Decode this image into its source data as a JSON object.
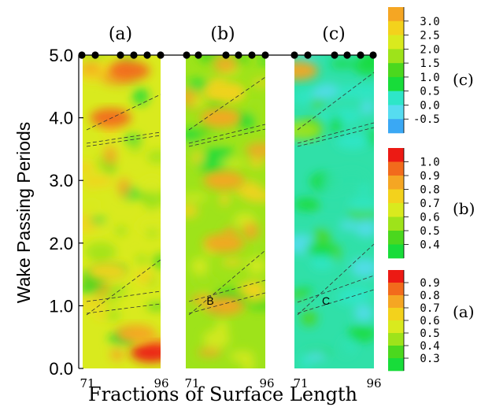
{
  "chart_data": {
    "type": "heatmap",
    "xlabel": "Fractions of Surface Length",
    "ylabel": "Wake Passing Periods",
    "ylim": [
      0,
      5
    ],
    "y_ticks": [
      "0.0",
      "1.0",
      "2.0",
      "3.0",
      "4.0",
      "5.0"
    ],
    "grid": false,
    "panels": [
      {
        "label": "(a)",
        "x_ticks": [
          "71",
          "96"
        ],
        "annotation": "",
        "colorbar": "(a)",
        "sensor_marker_count": 6,
        "value_range": [
          0.3,
          0.9
        ],
        "hotspots": [
          {
            "x": 93,
            "y": 0.25,
            "level": 0.9
          },
          {
            "x": 80,
            "y": 4.0,
            "level": 0.85
          },
          {
            "x": 86,
            "y": 4.75,
            "level": 0.8
          },
          {
            "x": 88,
            "y": 0.55,
            "level": 0.7
          },
          {
            "x": 79,
            "y": 1.55,
            "level": 0.65
          }
        ]
      },
      {
        "label": "(b)",
        "x_ticks": [
          "71",
          "96"
        ],
        "annotation": "B",
        "colorbar": "(b)",
        "sensor_marker_count": 7,
        "value_range": [
          0.4,
          1.0
        ],
        "hotspots": [
          {
            "x": 83,
            "y": 1.0,
            "level": 0.85
          },
          {
            "x": 83,
            "y": 2.0,
            "level": 0.85
          },
          {
            "x": 83,
            "y": 3.0,
            "level": 0.85
          },
          {
            "x": 82,
            "y": 4.0,
            "level": 0.8
          },
          {
            "x": 83,
            "y": 4.4,
            "level": 0.75
          }
        ]
      },
      {
        "label": "(c)",
        "x_ticks": [
          "71",
          "96"
        ],
        "annotation": "C",
        "colorbar": "(c)",
        "sensor_marker_count": 7,
        "value_range": [
          -0.5,
          3.0
        ],
        "hotspots": [
          {
            "x": 72,
            "y": 4.75,
            "level": 3.0
          },
          {
            "x": 73,
            "y": 3.8,
            "level": 1.5
          }
        ]
      }
    ],
    "colorbars": [
      {
        "name": "(c)",
        "labels": [
          "3.0",
          "2.5",
          "2.0",
          "1.5",
          "1.0",
          "0.5",
          "0.0",
          "-0.5"
        ],
        "colors": [
          "#f5a623",
          "#f3d21c",
          "#d9ea1e",
          "#9ee31a",
          "#4bd81e",
          "#18dc3a",
          "#2ee6c8",
          "#56dcf0",
          "#3aa8f4"
        ]
      },
      {
        "name": "(b)",
        "labels": [
          "1.0",
          "0.9",
          "0.8",
          "0.7",
          "0.6",
          "0.5",
          "0.4"
        ],
        "colors": [
          "#ec1a14",
          "#f26b1c",
          "#f5a623",
          "#f3d21c",
          "#d9ea1e",
          "#9ee31a",
          "#4bd81e",
          "#18dc3a"
        ]
      },
      {
        "name": "(a)",
        "labels": [
          "0.9",
          "0.8",
          "0.7",
          "0.6",
          "0.5",
          "0.4",
          "0.3"
        ],
        "colors": [
          "#ec1a14",
          "#f26b1c",
          "#f5a623",
          "#f3d21c",
          "#d9ea1e",
          "#9ee31a",
          "#4bd81e",
          "#18dc3a"
        ]
      }
    ]
  }
}
